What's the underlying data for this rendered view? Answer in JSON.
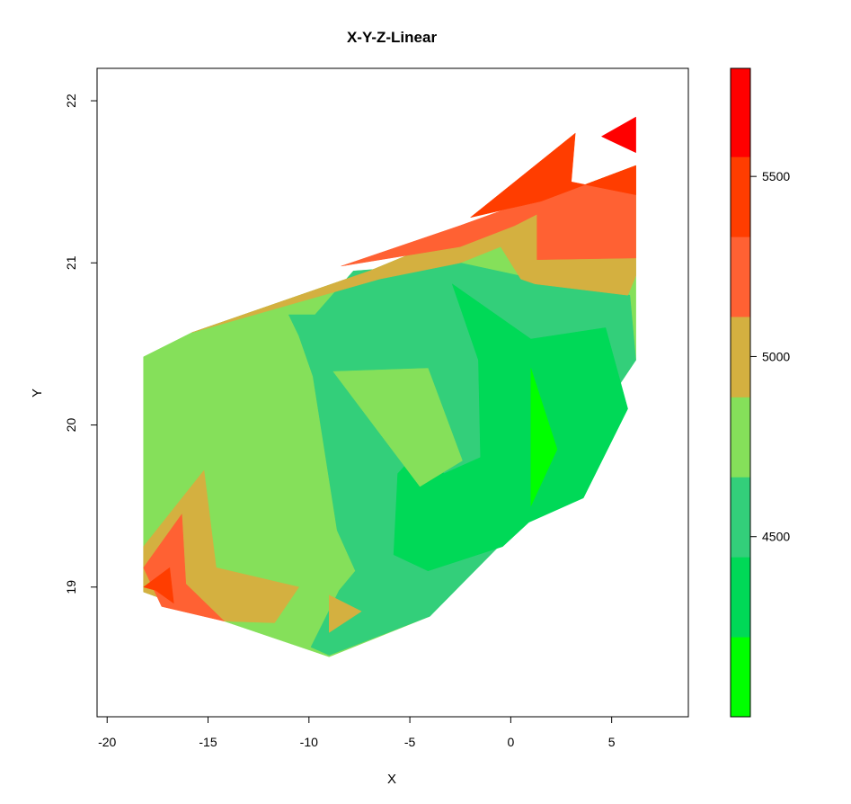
{
  "chart_data": {
    "type": "filled-contour",
    "title": "X-Y-Z-Linear",
    "xlabel": "X",
    "ylabel": "Y",
    "xlim": [
      -20.5,
      8.8
    ],
    "ylim": [
      18.2,
      22.2
    ],
    "xticks": [
      -20,
      -15,
      -10,
      -5,
      0,
      5
    ],
    "yticks": [
      19,
      20,
      21,
      22
    ],
    "zlim": [
      4000,
      5800
    ],
    "zticks": [
      4500,
      5000,
      5500
    ],
    "levels": [
      {
        "from": 4000,
        "to": 4222,
        "color": "#00FF00"
      },
      {
        "from": 4222,
        "to": 4444,
        "color": "#00D957"
      },
      {
        "from": 4444,
        "to": 4666,
        "color": "#33CF7A"
      },
      {
        "from": 4666,
        "to": 4888,
        "color": "#85E05A"
      },
      {
        "from": 4888,
        "to": 5111,
        "color": "#D4B040"
      },
      {
        "from": 5111,
        "to": 5333,
        "color": "#FF6133"
      },
      {
        "from": 5333,
        "to": 5555,
        "color": "#FF3D00"
      },
      {
        "from": 5555,
        "to": 5800,
        "color": "#FF0000"
      }
    ],
    "regions": [
      {
        "level": 3,
        "points": [
          [
            -18.2,
            20.42
          ],
          [
            -15.8,
            20.57
          ],
          [
            -7,
            20.95
          ],
          [
            -0.6,
            21.28
          ],
          [
            1.5,
            21.38
          ],
          [
            6.2,
            21.6
          ],
          [
            6.2,
            20.4
          ],
          [
            -4,
            18.82
          ],
          [
            -9,
            18.57
          ],
          [
            -14.2,
            18.79
          ],
          [
            -18.2,
            18.97
          ]
        ]
      },
      {
        "level": 2,
        "points": [
          [
            -11,
            20.68
          ],
          [
            -9.7,
            20.68
          ],
          [
            -7.8,
            20.95
          ],
          [
            -2.5,
            21.0
          ],
          [
            1.2,
            20.9
          ],
          [
            5.9,
            20.8
          ],
          [
            6.2,
            20.4
          ],
          [
            1.3,
            19.49
          ],
          [
            -4,
            18.82
          ],
          [
            -9,
            18.58
          ],
          [
            -9.9,
            18.63
          ],
          [
            -8.5,
            18.98
          ],
          [
            -7.7,
            19.1
          ],
          [
            -8.6,
            19.35
          ],
          [
            -9.8,
            20.3
          ],
          [
            -10.5,
            20.55
          ]
        ]
      },
      {
        "level": 1,
        "points": [
          [
            -2.9,
            20.87
          ],
          [
            1.0,
            20.53
          ],
          [
            4.7,
            20.6
          ],
          [
            5.8,
            20.1
          ],
          [
            3.6,
            19.55
          ],
          [
            0.9,
            19.4
          ],
          [
            -0.4,
            19.25
          ],
          [
            -4.1,
            19.1
          ],
          [
            -5.8,
            19.2
          ],
          [
            -5.6,
            19.7
          ],
          [
            -4.5,
            19.85
          ],
          [
            -3.3,
            19.7
          ],
          [
            -1.5,
            19.8
          ],
          [
            -1.6,
            20.4
          ]
        ]
      },
      {
        "level": 0,
        "points": [
          [
            1.0,
            20.35
          ],
          [
            2.3,
            19.85
          ],
          [
            1.0,
            19.5
          ]
        ]
      },
      {
        "level": 3,
        "points": [
          [
            -8.8,
            20.33
          ],
          [
            -4.1,
            20.35
          ],
          [
            -2.4,
            19.78
          ],
          [
            -4.5,
            19.62
          ],
          [
            -6.5,
            19.95
          ]
        ]
      },
      {
        "level": 4,
        "points": [
          [
            -9.0,
            18.95
          ],
          [
            -7.4,
            18.85
          ],
          [
            -9.0,
            18.72
          ]
        ]
      },
      {
        "level": 4,
        "points": [
          [
            -18.2,
            19.25
          ],
          [
            -15.2,
            19.72
          ],
          [
            -14.6,
            19.12
          ],
          [
            -10.5,
            19.0
          ],
          [
            -11.7,
            18.78
          ],
          [
            -14.2,
            18.79
          ],
          [
            -18.2,
            18.97
          ]
        ]
      },
      {
        "level": 5,
        "points": [
          [
            -18.2,
            19.12
          ],
          [
            -16.3,
            19.45
          ],
          [
            -16.1,
            19.02
          ],
          [
            -14.2,
            18.79
          ],
          [
            -17.3,
            18.88
          ]
        ]
      },
      {
        "level": 6,
        "points": [
          [
            -18.2,
            19.0
          ],
          [
            -16.9,
            19.12
          ],
          [
            -16.7,
            18.9
          ],
          [
            -17.6,
            18.98
          ]
        ]
      },
      {
        "level": 4,
        "points": [
          [
            -15.8,
            20.57
          ],
          [
            -7,
            20.95
          ],
          [
            -0.6,
            21.28
          ],
          [
            1.5,
            21.38
          ],
          [
            6.2,
            21.6
          ],
          [
            6.2,
            20.92
          ],
          [
            5.8,
            20.8
          ],
          [
            1.2,
            20.87
          ],
          [
            0.5,
            20.9
          ],
          [
            -0.5,
            21.1
          ],
          [
            -2.5,
            21.0
          ],
          [
            -6.5,
            20.9
          ]
        ]
      },
      {
        "level": 5,
        "points": [
          [
            -8.4,
            20.98
          ],
          [
            -2.5,
            21.23
          ],
          [
            -0.5,
            21.32
          ],
          [
            1.5,
            21.38
          ],
          [
            6.2,
            21.6
          ],
          [
            6.2,
            21.03
          ],
          [
            1.3,
            21.02
          ],
          [
            1.3,
            21.3
          ],
          [
            0.2,
            21.23
          ],
          [
            -2.5,
            21.1
          ]
        ]
      },
      {
        "level": 6,
        "points": [
          [
            -2,
            21.28
          ],
          [
            1.5,
            21.38
          ],
          [
            6.2,
            21.6
          ],
          [
            6.2,
            21.42
          ],
          [
            3.0,
            21.5
          ],
          [
            3.2,
            21.8
          ]
        ]
      },
      {
        "level": 7,
        "points": [
          [
            4.5,
            21.78
          ],
          [
            6.2,
            21.9
          ],
          [
            6.2,
            21.68
          ],
          [
            5.0,
            21.75
          ]
        ]
      }
    ]
  }
}
